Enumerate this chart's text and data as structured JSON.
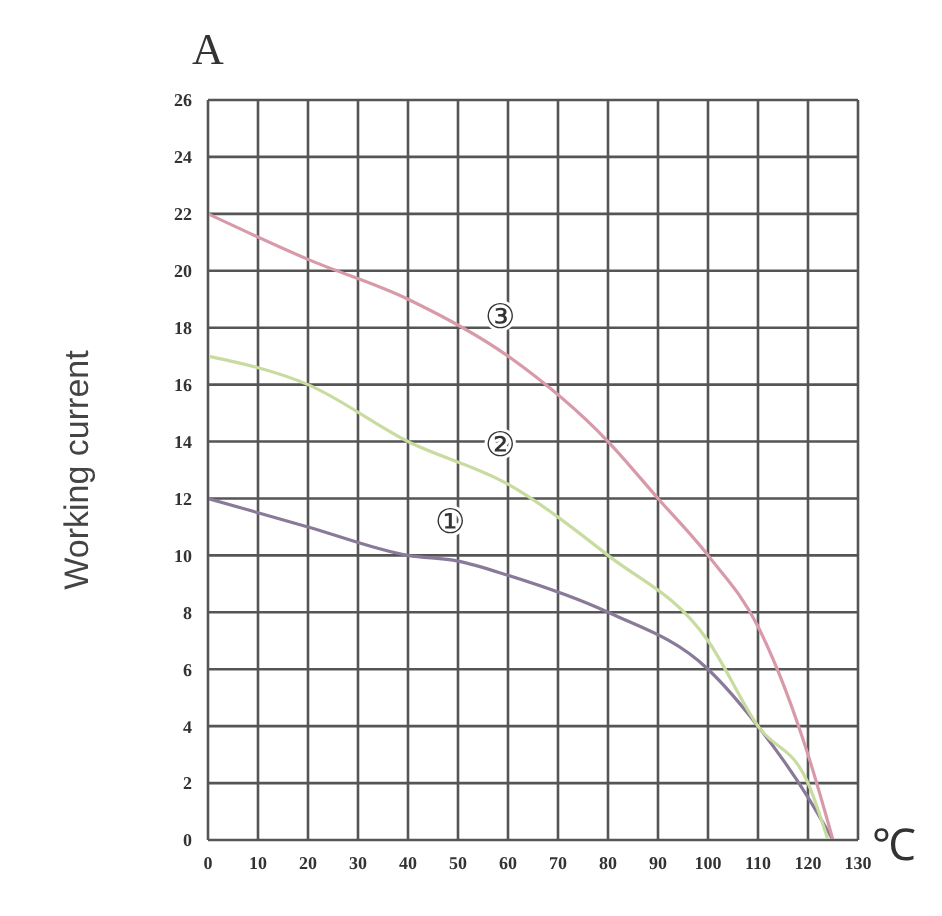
{
  "chart_data": {
    "type": "line",
    "ylabel": "Working current",
    "xlabel": "℃",
    "annotations": [
      "A"
    ],
    "series": [
      {
        "name": "①",
        "color": "#8a7a9a",
        "x": [
          0,
          20,
          40,
          50,
          60,
          80,
          100,
          110,
          120,
          125
        ],
        "values": [
          12,
          11,
          10,
          9.8,
          9.3,
          8,
          6,
          4,
          1.5,
          0
        ]
      },
      {
        "name": "②",
        "color": "#c8dca0",
        "x": [
          0,
          20,
          40,
          60,
          80,
          100,
          110,
          120,
          124
        ],
        "values": [
          17,
          16,
          14,
          12.5,
          10,
          7,
          4,
          2,
          0
        ]
      },
      {
        "name": "③",
        "color": "#d89aa8",
        "x": [
          0,
          20,
          40,
          60,
          80,
          90,
          100,
          110,
          120,
          125
        ],
        "values": [
          22,
          20.4,
          19,
          17,
          14,
          12,
          10,
          7.5,
          3,
          0
        ]
      }
    ],
    "xlim": [
      0,
      130
    ],
    "xticks": [
      0,
      10,
      20,
      30,
      40,
      50,
      60,
      70,
      80,
      90,
      100,
      110,
      120,
      130
    ],
    "ylim": [
      0,
      26
    ],
    "yticks": [
      0,
      2,
      4,
      6,
      8,
      10,
      12,
      14,
      16,
      18,
      20,
      22,
      24,
      26
    ],
    "grid": true,
    "marker": "none",
    "line_style": "solid"
  }
}
